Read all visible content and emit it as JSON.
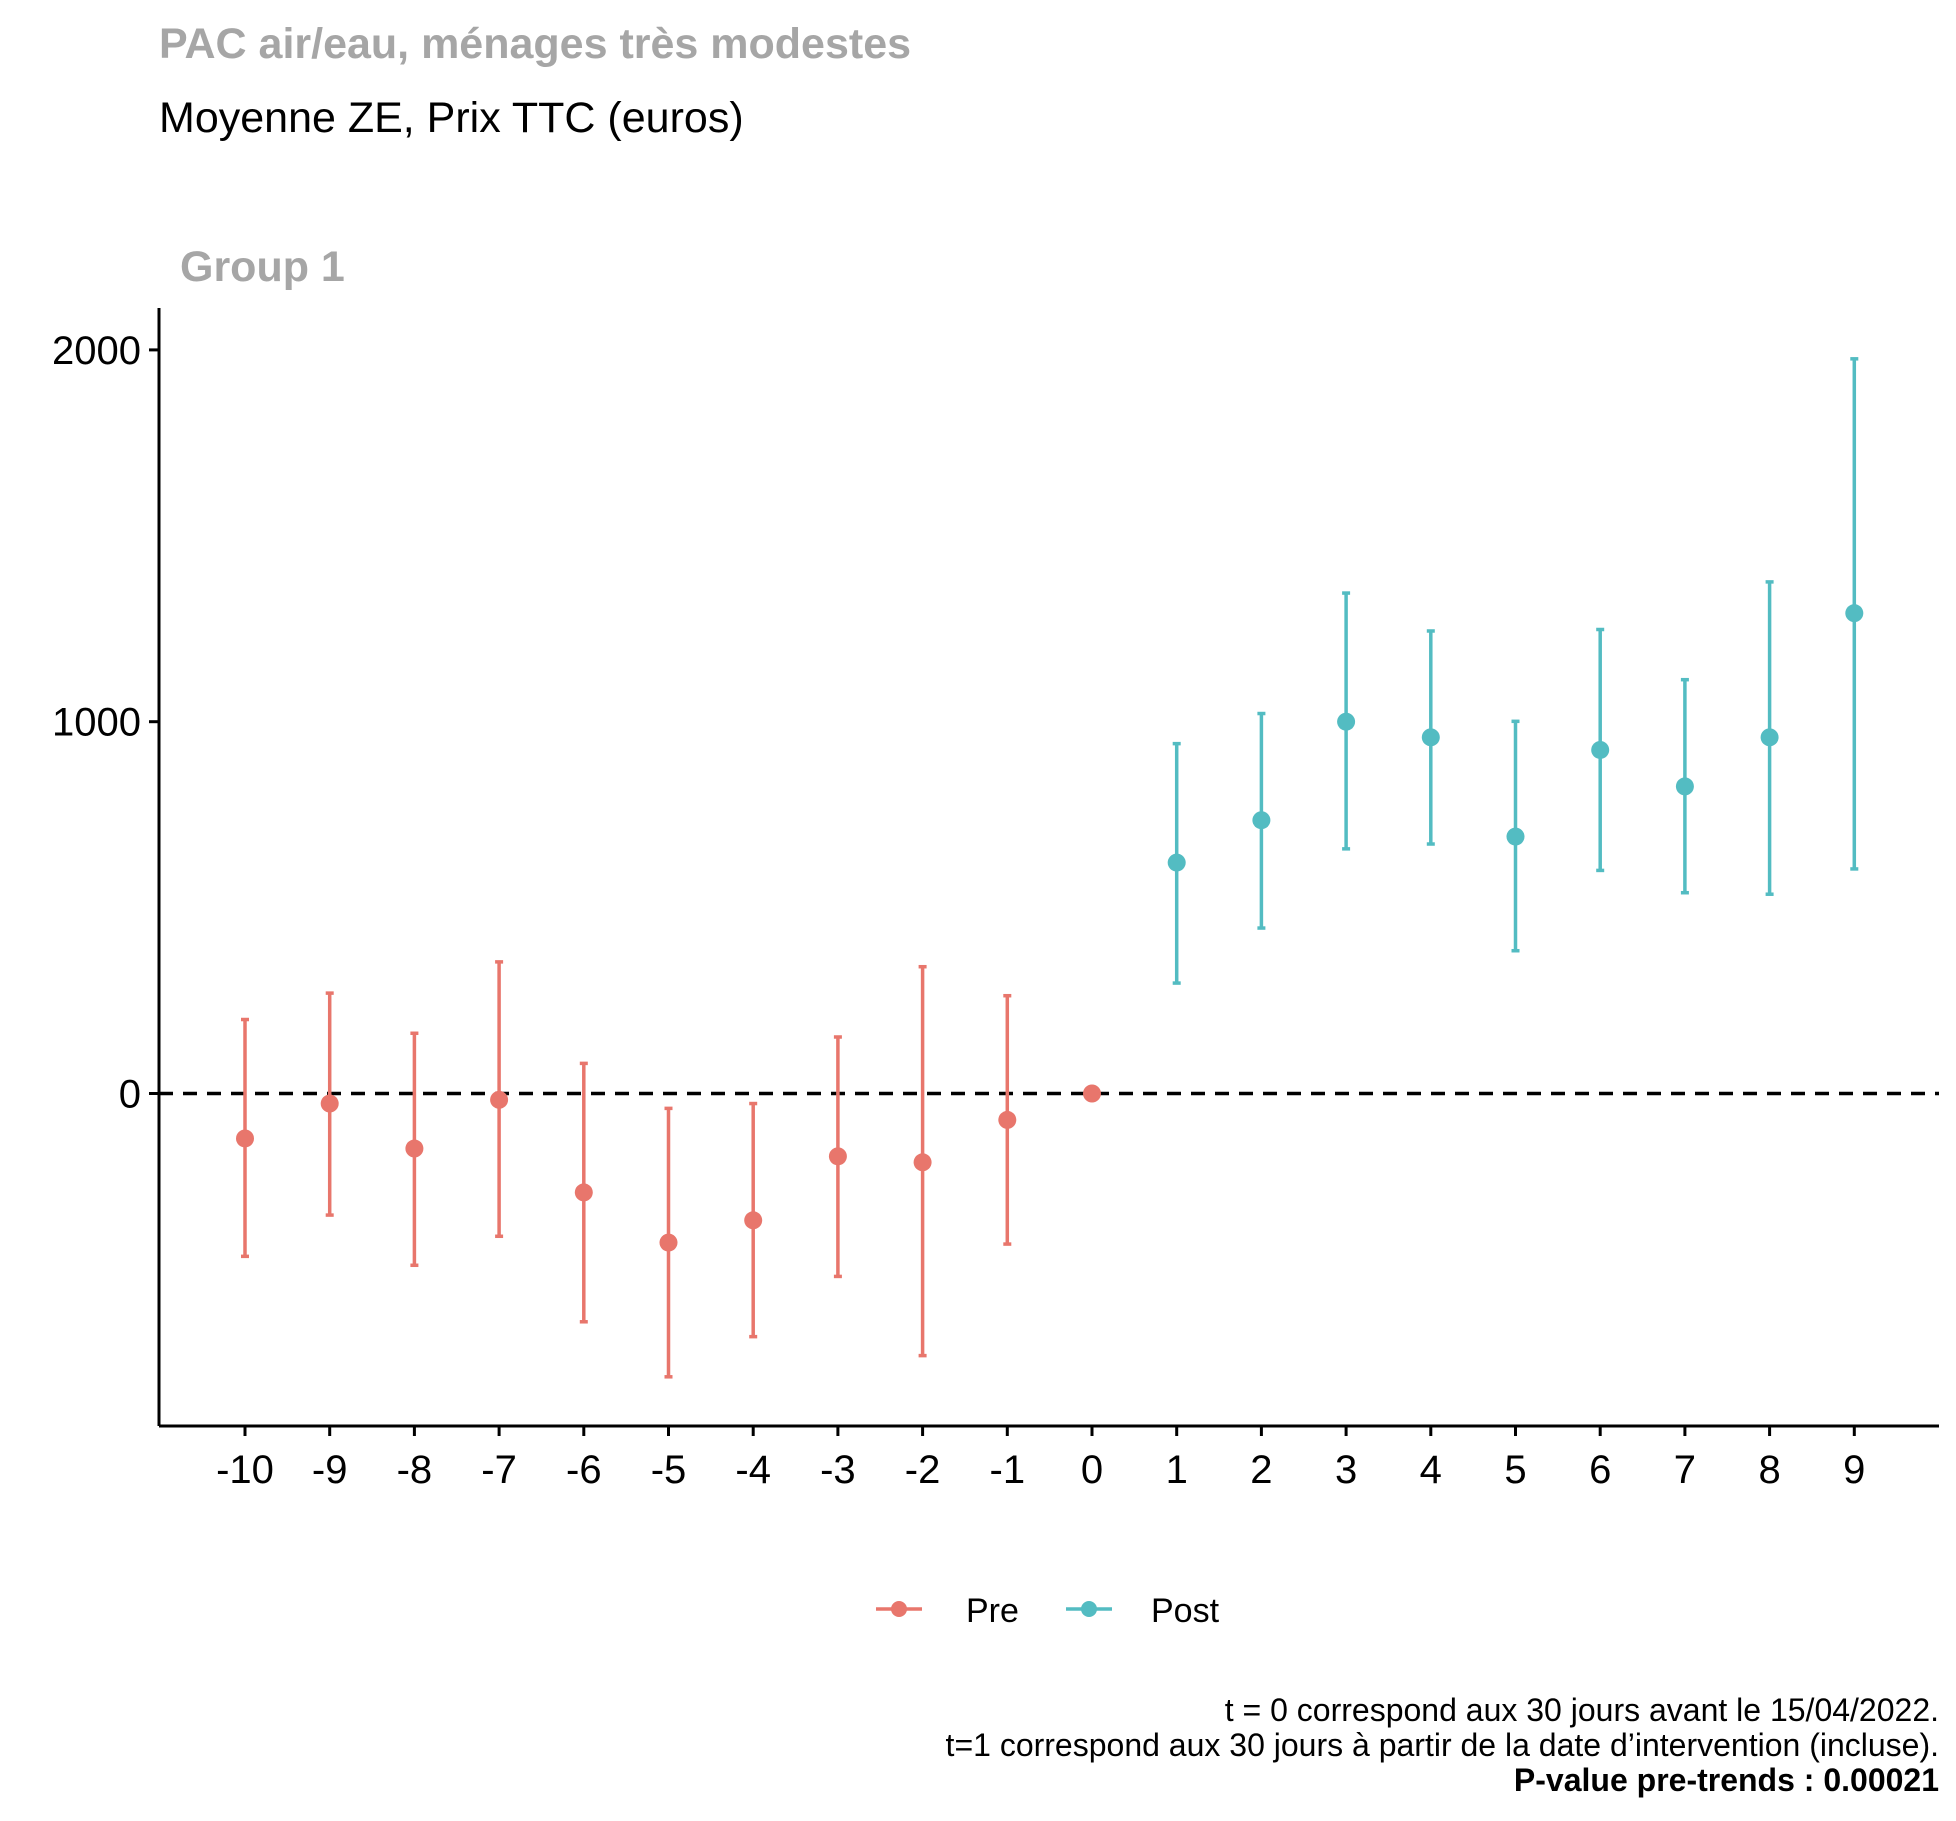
{
  "chart_data": {
    "type": "scatter",
    "title": "PAC air/eau, ménages très modestes",
    "subtitle": "Moyenne ZE, Prix TTC (euros)",
    "panel_label": "Group 1",
    "xlabel": "",
    "ylabel": "",
    "x_ticks": [
      -10,
      -9,
      -8,
      -7,
      -6,
      -5,
      -4,
      -3,
      -2,
      -1,
      0,
      1,
      2,
      3,
      4,
      5,
      6,
      7,
      8,
      9
    ],
    "y_ticks": [
      0,
      1000,
      2000
    ],
    "ylim": [
      -900,
      2110
    ],
    "xlim": [
      -11,
      10
    ],
    "reference_line": {
      "y": 0,
      "style": "dashed"
    },
    "legend": {
      "placement": "bottom",
      "entries": [
        "Pre",
        "Post"
      ]
    },
    "colors": {
      "Pre": "#E8766C",
      "Post": "#53BCC2"
    },
    "series": [
      {
        "name": "Pre",
        "points": [
          {
            "x": -10,
            "y": -121,
            "lo": -438,
            "hi": 199
          },
          {
            "x": -9,
            "y": -27,
            "lo": -327,
            "hi": 270
          },
          {
            "x": -8,
            "y": -148,
            "lo": -462,
            "hi": 162
          },
          {
            "x": -7,
            "y": -17,
            "lo": -384,
            "hi": 354
          },
          {
            "x": -6,
            "y": -266,
            "lo": -614,
            "hi": 81
          },
          {
            "x": -5,
            "y": -401,
            "lo": -762,
            "hi": -40
          },
          {
            "x": -4,
            "y": -341,
            "lo": -654,
            "hi": -27
          },
          {
            "x": -3,
            "y": -169,
            "lo": -492,
            "hi": 152
          },
          {
            "x": -2,
            "y": -185,
            "lo": -705,
            "hi": 341
          },
          {
            "x": -1,
            "y": -71,
            "lo": -405,
            "hi": 263
          },
          {
            "x": 0,
            "y": 0,
            "lo": null,
            "hi": null
          }
        ]
      },
      {
        "name": "Post",
        "points": [
          {
            "x": 1,
            "y": 621,
            "lo": 297,
            "hi": 941
          },
          {
            "x": 2,
            "y": 735,
            "lo": 445,
            "hi": 1022
          },
          {
            "x": 3,
            "y": 1000,
            "lo": 658,
            "hi": 1346
          },
          {
            "x": 4,
            "y": 958,
            "lo": 671,
            "hi": 1244
          },
          {
            "x": 5,
            "y": 691,
            "lo": 384,
            "hi": 1001
          },
          {
            "x": 6,
            "y": 924,
            "lo": 600,
            "hi": 1248
          },
          {
            "x": 7,
            "y": 826,
            "lo": 540,
            "hi": 1113
          },
          {
            "x": 8,
            "y": 958,
            "lo": 536,
            "hi": 1376
          },
          {
            "x": 9,
            "y": 1292,
            "lo": 604,
            "hi": 1976
          }
        ]
      }
    ],
    "caption": [
      "t = 0 correspond aux 30 jours avant le 15/04/2022.",
      "t=1 correspond aux 30 jours à partir de la date d’intervention (incluse).",
      "P-value pre-trends : 0.00021"
    ]
  }
}
